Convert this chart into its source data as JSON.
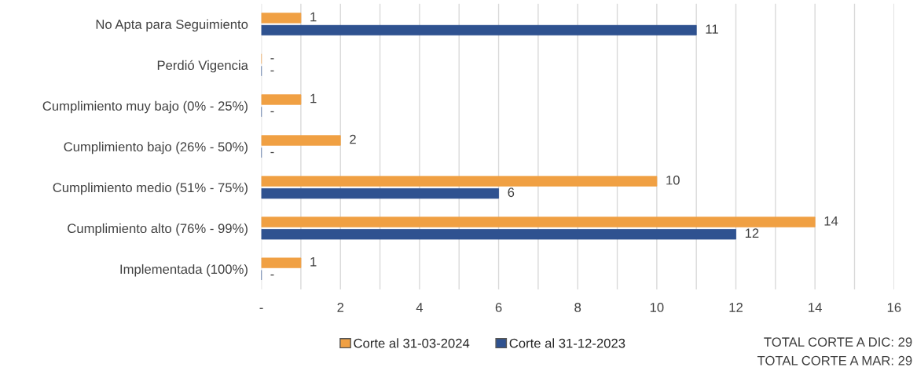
{
  "chart_data": {
    "type": "bar",
    "orientation": "horizontal",
    "categories": [
      "No Apta para Seguimiento",
      "Perdió Vigencia",
      "Cumplimiento muy bajo (0% - 25%)",
      "Cumplimiento bajo (26% - 50%)",
      "Cumplimiento medio (51% - 75%)",
      "Cumplimiento alto (76% - 99%)",
      "Implementada (100%)"
    ],
    "series": [
      {
        "name": "Corte al 31-03-2024",
        "color": "#f0a043",
        "values": [
          1,
          0,
          1,
          2,
          10,
          14,
          1
        ],
        "value_labels": [
          "1",
          "-",
          "1",
          "2",
          "10",
          "14",
          "1"
        ]
      },
      {
        "name": "Corte al 31-12-2023",
        "color": "#2f5290",
        "values": [
          11,
          0,
          0,
          0,
          6,
          12,
          0
        ],
        "value_labels": [
          "11",
          "-",
          "-",
          "-",
          "6",
          "12",
          "-"
        ]
      }
    ],
    "xlim": [
      0,
      16
    ],
    "xticks": [
      {
        "value": 0,
        "label": "-"
      },
      {
        "value": 1,
        "label": null
      },
      2,
      {
        "value": 3,
        "label": null
      },
      4,
      {
        "value": 5,
        "label": null
      },
      6,
      {
        "value": 7,
        "label": null
      },
      8,
      {
        "value": 9,
        "label": null
      },
      10,
      {
        "value": 11,
        "label": null
      },
      12,
      {
        "value": 13,
        "label": null
      },
      14,
      {
        "value": 15,
        "label": null
      },
      16
    ],
    "grid": "x",
    "legend": "bottom",
    "annotations": [
      "TOTAL CORTE A DIC: 29",
      "TOTAL CORTE A MAR: 29"
    ]
  }
}
